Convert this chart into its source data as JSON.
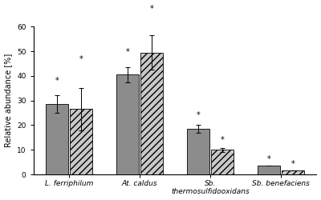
{
  "species": [
    "L. ferriphilum",
    "At. caldus",
    "Sb.\nthermosulfidooxidans",
    "Sb. benefaciens"
  ],
  "bar1_values": [
    28.5,
    40.5,
    18.5,
    3.5
  ],
  "bar2_values": [
    26.5,
    49.5,
    10.0,
    1.5
  ],
  "bar1_errors": [
    3.5,
    3.0,
    1.5,
    0.0
  ],
  "bar2_errors": [
    8.5,
    7.0,
    0.8,
    0.0
  ],
  "bar1_color": "#8c8c8c",
  "bar2_color": "#c8c8c8",
  "bar2_hatch": "////",
  "ylabel": "Relative abundance [%]",
  "ylim": [
    0,
    60
  ],
  "yticks": [
    0,
    10,
    20,
    30,
    40,
    50,
    60
  ],
  "ast1_offsets": [
    4.5,
    4.5,
    2.5,
    1.0
  ],
  "ast2_offsets": [
    10.0,
    9.0,
    1.5,
    1.0
  ],
  "bar_width": 0.32,
  "group_positions": [
    0.5,
    1.5,
    2.5,
    3.5
  ],
  "xlim": [
    0,
    4.0
  ]
}
